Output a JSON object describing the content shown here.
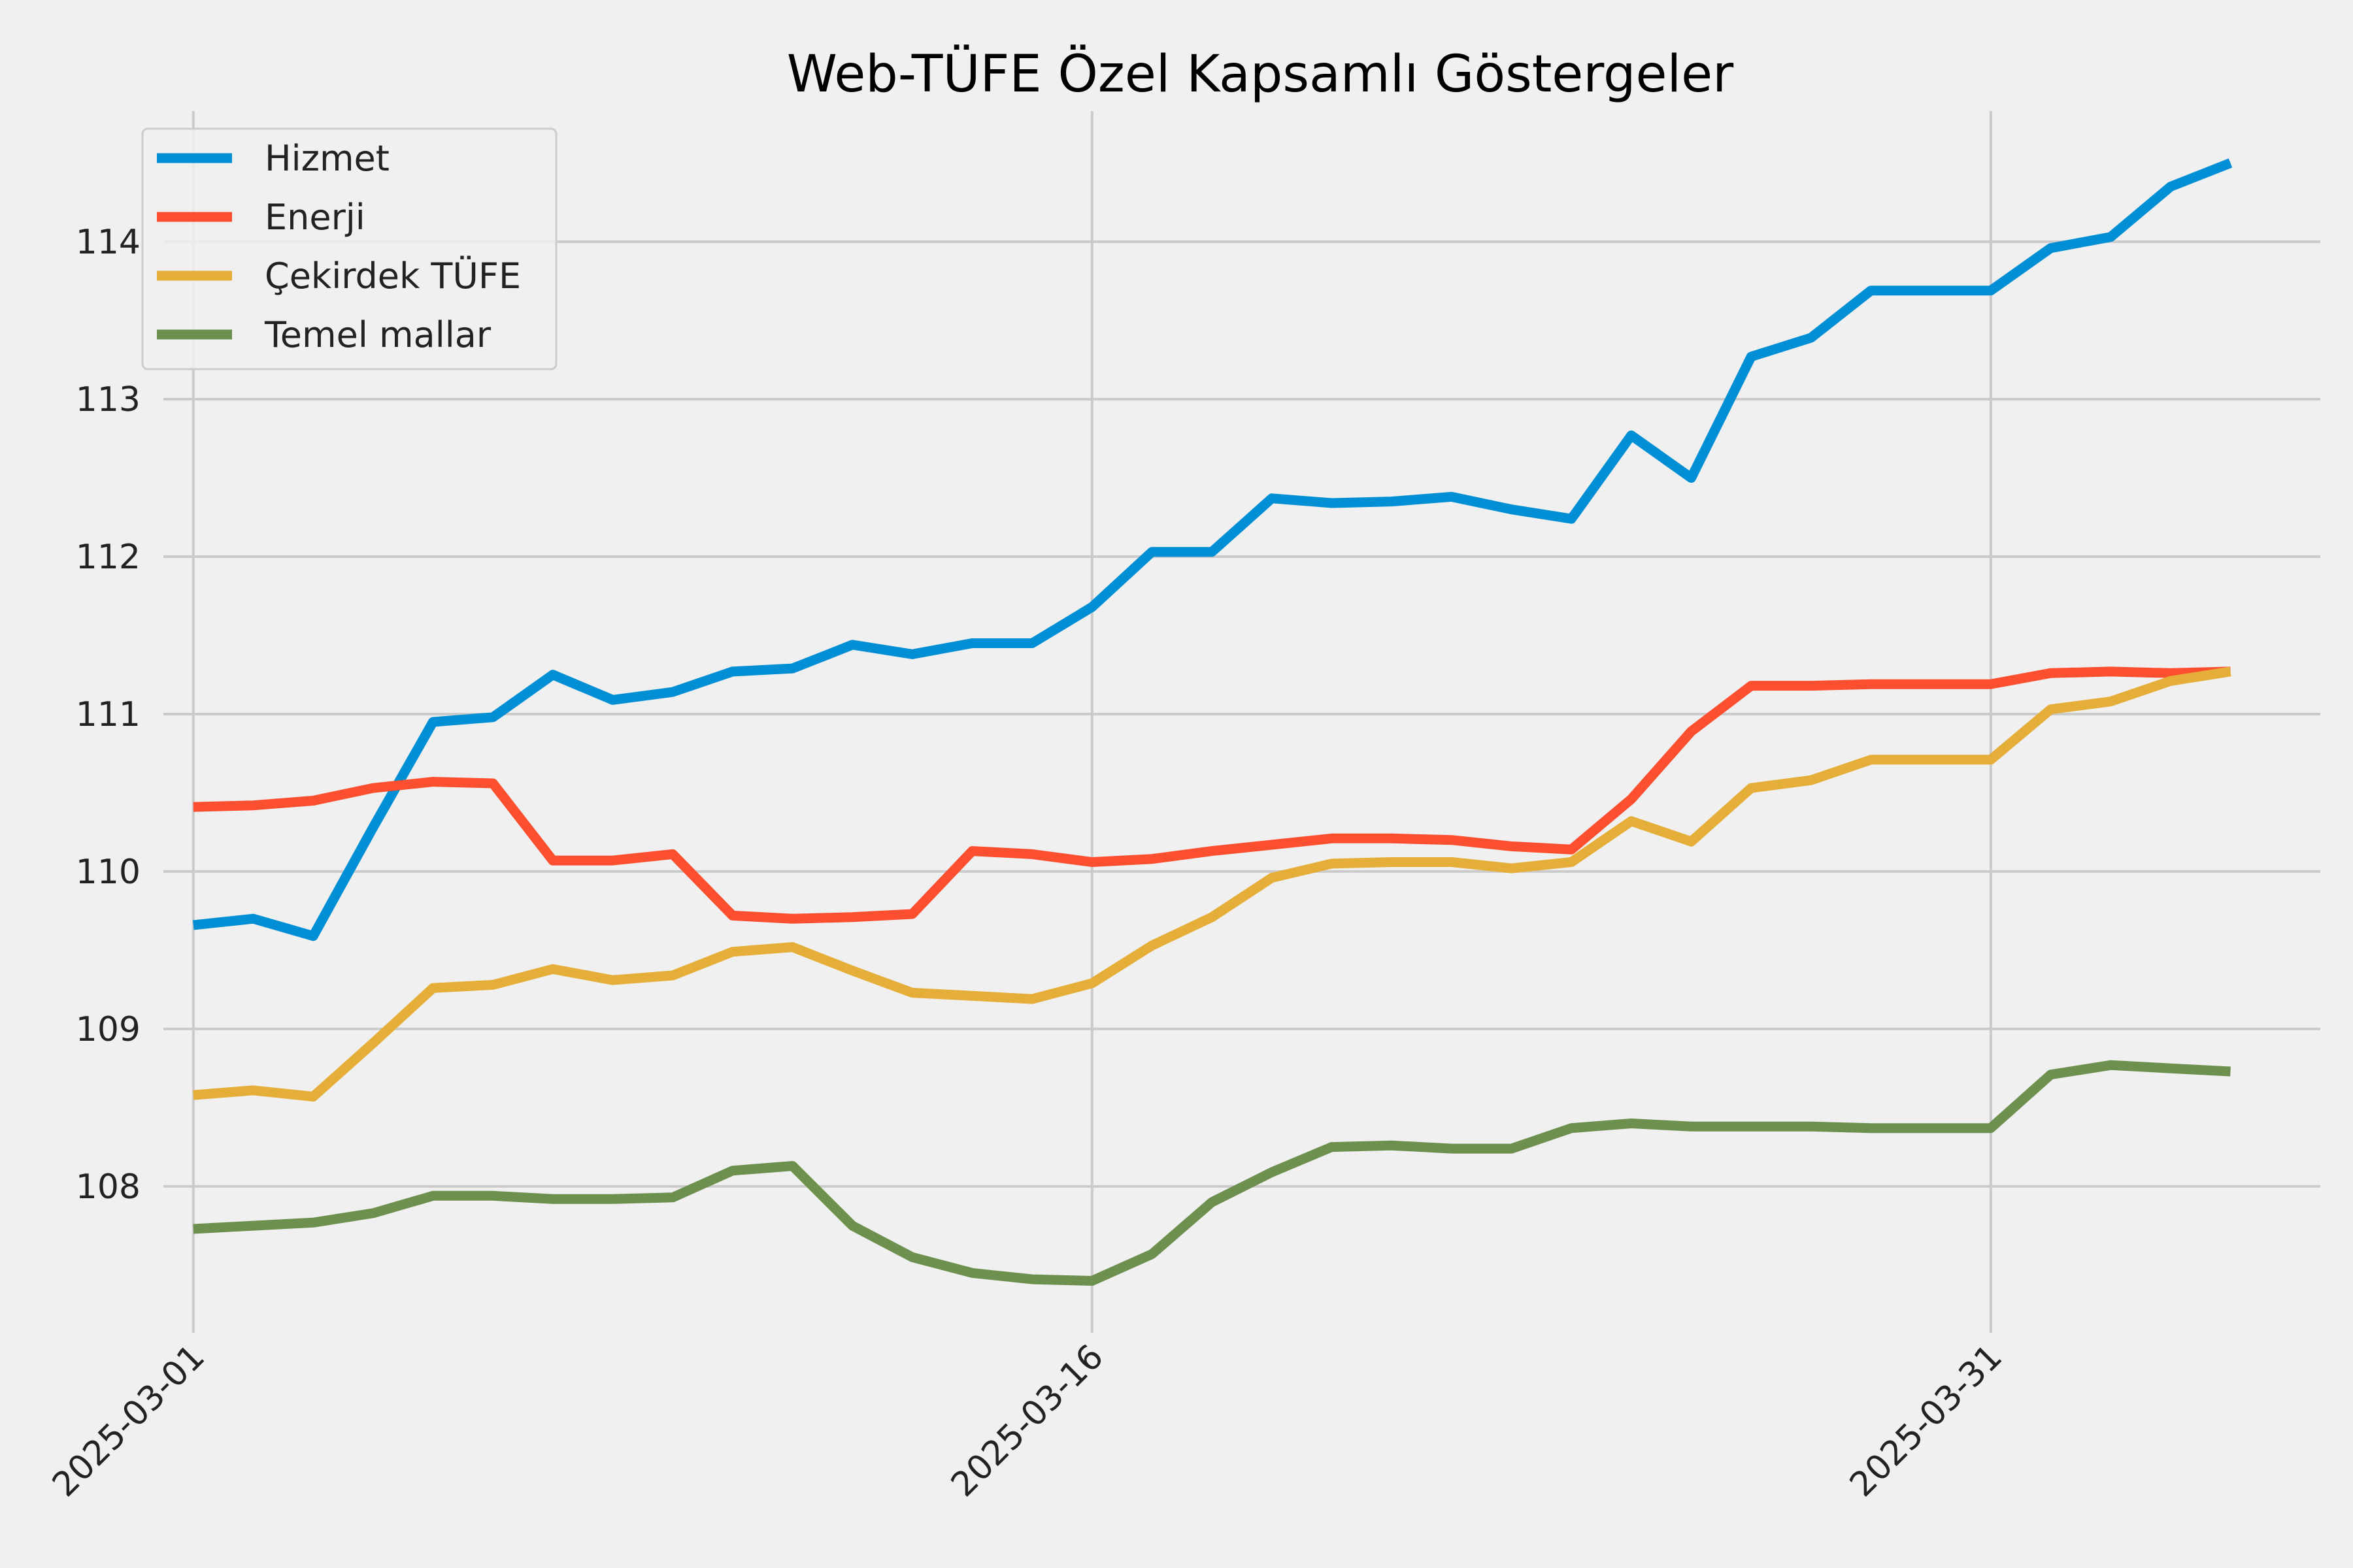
{
  "chart_data": {
    "type": "line",
    "title": "Web-TÜFE Özel Kapsamlı Göstergeler",
    "xlabel": "",
    "ylabel": "",
    "x": [
      "2025-03-01",
      "2025-03-02",
      "2025-03-03",
      "2025-03-04",
      "2025-03-05",
      "2025-03-06",
      "2025-03-07",
      "2025-03-08",
      "2025-03-09",
      "2025-03-10",
      "2025-03-11",
      "2025-03-12",
      "2025-03-13",
      "2025-03-14",
      "2025-03-15",
      "2025-03-16",
      "2025-03-17",
      "2025-03-18",
      "2025-03-19",
      "2025-03-20",
      "2025-03-21",
      "2025-03-22",
      "2025-03-23",
      "2025-03-24",
      "2025-03-25",
      "2025-03-26",
      "2025-03-27",
      "2025-03-28",
      "2025-03-29",
      "2025-03-30",
      "2025-03-31",
      "2025-04-01",
      "2025-04-02",
      "2025-04-03",
      "2025-04-04"
    ],
    "xticks": [
      "2025-03-01",
      "2025-03-16",
      "2025-03-31"
    ],
    "xlim": [
      -0.5,
      35.5
    ],
    "yticks": [
      108,
      109,
      110,
      111,
      112,
      113,
      114
    ],
    "ylim": [
      107.07,
      114.83
    ],
    "grid": true,
    "legend": "top-left",
    "series": [
      {
        "name": "Hizmet",
        "color": "#008fd5",
        "values": [
          109.66,
          109.7,
          109.59,
          110.28,
          110.95,
          110.98,
          111.25,
          111.09,
          111.14,
          111.27,
          111.29,
          111.44,
          111.38,
          111.45,
          111.45,
          111.68,
          112.03,
          112.03,
          112.37,
          112.34,
          112.35,
          112.38,
          112.3,
          112.24,
          112.77,
          112.5,
          113.27,
          113.39,
          113.69,
          113.69,
          113.69,
          113.96,
          114.03,
          114.35,
          114.5
        ]
      },
      {
        "name": "Enerji",
        "color": "#fc4f30",
        "values": [
          110.41,
          110.42,
          110.45,
          110.53,
          110.57,
          110.56,
          110.07,
          110.07,
          110.11,
          109.72,
          109.7,
          109.71,
          109.73,
          110.13,
          110.11,
          110.06,
          110.08,
          110.13,
          110.17,
          110.21,
          110.21,
          110.2,
          110.16,
          110.14,
          110.46,
          110.89,
          111.18,
          111.18,
          111.19,
          111.19,
          111.19,
          111.26,
          111.27,
          111.26,
          111.27
        ]
      },
      {
        "name": "Çekirdek TÜFE",
        "color": "#e5ae38",
        "values": [
          108.58,
          108.61,
          108.57,
          108.91,
          109.26,
          109.28,
          109.38,
          109.31,
          109.34,
          109.49,
          109.52,
          109.37,
          109.23,
          109.21,
          109.19,
          109.29,
          109.53,
          109.71,
          109.96,
          110.05,
          110.06,
          110.06,
          110.02,
          110.06,
          110.32,
          110.19,
          110.53,
          110.58,
          110.71,
          110.71,
          110.71,
          111.03,
          111.08,
          111.21,
          111.27
        ]
      },
      {
        "name": "Temel mallar",
        "color": "#6d904f",
        "values": [
          107.73,
          107.75,
          107.77,
          107.83,
          107.94,
          107.94,
          107.92,
          107.92,
          107.93,
          108.1,
          108.13,
          107.75,
          107.55,
          107.45,
          107.41,
          107.4,
          107.57,
          107.9,
          108.09,
          108.25,
          108.26,
          108.24,
          108.24,
          108.37,
          108.4,
          108.38,
          108.38,
          108.38,
          108.37,
          108.37,
          108.37,
          108.71,
          108.77,
          108.75,
          108.73
        ]
      }
    ]
  }
}
